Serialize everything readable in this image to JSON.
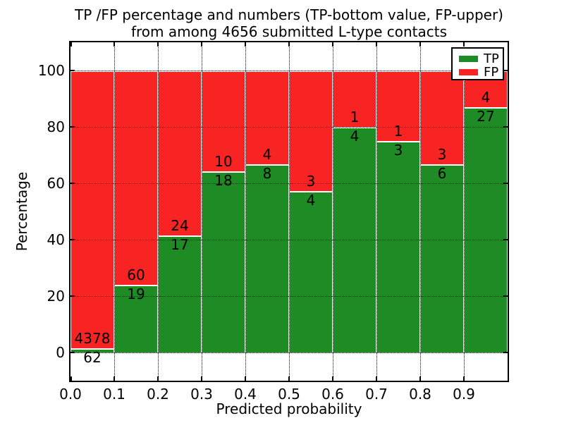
{
  "chart_data": {
    "type": "bar",
    "stacked": true,
    "title": "TP /FP percentage and numbers (TP-bottom value, FP-upper) from among 4656 submitted L-type contacts",
    "title_lines": [
      "TP /FP percentage and numbers (TP-bottom value, FP-upper)",
      "from among 4656 submitted L-type contacts"
    ],
    "xlabel": "Predicted probability",
    "ylabel": "Percentage",
    "xlim": [
      0.0,
      1.0
    ],
    "ylim": [
      -10,
      110
    ],
    "bar_bin_width": 0.1,
    "grid": "dotted",
    "x_tick_labels": [
      "0.0",
      "0.1",
      "0.2",
      "0.3",
      "0.4",
      "0.5",
      "0.6",
      "0.7",
      "0.8",
      "0.9"
    ],
    "y_tick_values": [
      0,
      20,
      40,
      60,
      80,
      100
    ],
    "categories": [
      "0.0-0.1",
      "0.1-0.2",
      "0.2-0.3",
      "0.3-0.4",
      "0.4-0.5",
      "0.5-0.6",
      "0.6-0.7",
      "0.7-0.8",
      "0.8-0.9",
      "0.9-1.0"
    ],
    "series": [
      {
        "name": "TP",
        "color": "#1f8b24",
        "counts": [
          62,
          19,
          17,
          18,
          8,
          4,
          4,
          3,
          6,
          27
        ]
      },
      {
        "name": "FP",
        "color": "#f82323",
        "counts": [
          4378,
          60,
          24,
          10,
          4,
          3,
          1,
          1,
          3,
          4
        ]
      }
    ],
    "tp_percentages": [
      1.4,
      24.1,
      41.5,
      64.3,
      66.7,
      57.1,
      80.0,
      75.0,
      66.7,
      87.1
    ],
    "total_contacts": "4656",
    "legend": {
      "position": "upper right",
      "entries": [
        {
          "label": "TP",
          "color": "#1f8b24"
        },
        {
          "label": "FP",
          "color": "#f82323"
        }
      ]
    }
  }
}
